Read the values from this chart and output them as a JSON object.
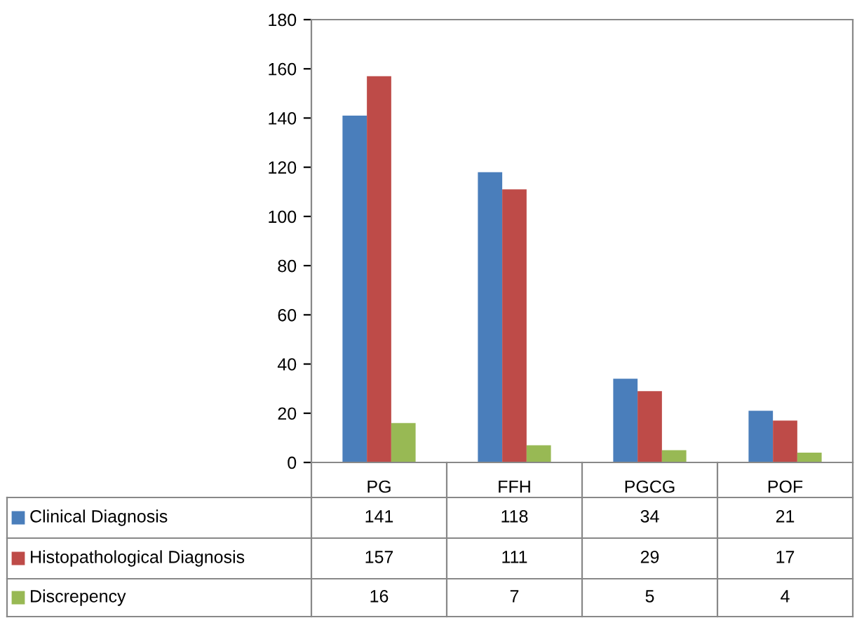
{
  "chart_data": {
    "type": "bar",
    "categories": [
      "PG",
      "FFH",
      "PGCG",
      "POF"
    ],
    "series": [
      {
        "name": "Clinical Diagnosis",
        "color": "#4a7ebb",
        "values": [
          141,
          118,
          34,
          21
        ]
      },
      {
        "name": "Histopathological Diagnosis",
        "color": "#be4b48",
        "values": [
          157,
          111,
          29,
          17
        ]
      },
      {
        "name": "Discrepency",
        "color": "#98b954",
        "values": [
          16,
          7,
          5,
          4
        ]
      }
    ],
    "ylim": [
      0,
      180
    ],
    "yticks": [
      0,
      20,
      40,
      60,
      80,
      100,
      120,
      140,
      160,
      180
    ],
    "grid": false,
    "legend": "bottom",
    "data_labels": true
  }
}
